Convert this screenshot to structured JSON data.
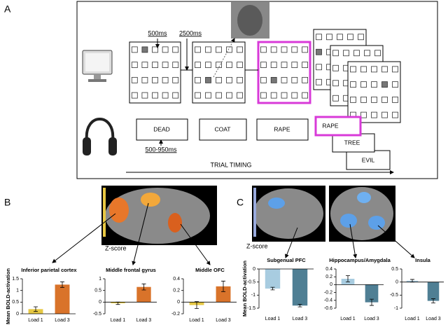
{
  "figure": {
    "panel_a": {
      "label": "A",
      "timing_labels": [
        "500ms",
        "2500ms",
        "500-950ms"
      ],
      "words": [
        "DEAD",
        "COAT",
        "RAPE",
        "RAPE",
        "TREE",
        "EVIL"
      ],
      "axis_label": "TRIAL TIMING"
    },
    "panel_b": {
      "label": "B",
      "scale_label": "Z-score"
    },
    "panel_c": {
      "label": "C",
      "scale_label": "Z-score"
    }
  },
  "chart_data": [
    {
      "type": "bar",
      "title": "Inferior parietal cortex",
      "ylabel": "Mean BOLD-activation",
      "categories": [
        "Load 1",
        "Load 3"
      ],
      "values": [
        0.2,
        1.25
      ],
      "errors": [
        0.1,
        0.12
      ],
      "colors": [
        "#e6c843",
        "#d9732a"
      ],
      "ylim": [
        0,
        1.5
      ],
      "yticks": [
        0,
        0.5,
        1,
        1.5
      ]
    },
    {
      "type": "bar",
      "title": "Middle frontal gyrus",
      "categories": [
        "Load 1",
        "Load 3"
      ],
      "values": [
        -0.05,
        0.65
      ],
      "errors": [
        0.05,
        0.13
      ],
      "colors": [
        "#e6c843",
        "#d9732a"
      ],
      "ylim": [
        -0.5,
        1
      ],
      "yticks": [
        -0.5,
        0,
        0.5,
        1
      ]
    },
    {
      "type": "bar",
      "title": "Middle OFC",
      "categories": [
        "Load 1",
        "Load 3"
      ],
      "values": [
        -0.05,
        0.27
      ],
      "errors": [
        0.06,
        0.09
      ],
      "colors": [
        "#e6c843",
        "#d9732a"
      ],
      "ylim": [
        -0.2,
        0.4
      ],
      "yticks": [
        -0.2,
        0,
        0.2,
        0.4
      ]
    },
    {
      "type": "bar",
      "title": "Subgenual PFC",
      "ylabel": "Mean BOLD-activation",
      "categories": [
        "Load 1",
        "Load 3"
      ],
      "values": [
        -0.75,
        -1.4
      ],
      "errors": [
        0.05,
        0.05
      ],
      "colors": [
        "#a8cce0",
        "#4f7f94"
      ],
      "ylim": [
        -1.5,
        0
      ],
      "yticks": [
        0,
        -0.5,
        -1,
        -1.5
      ]
    },
    {
      "type": "bar",
      "title": "Hippocampus/Amygdala",
      "categories": [
        "Load 1",
        "Load 3"
      ],
      "values": [
        0.15,
        -0.45
      ],
      "errors": [
        0.08,
        0.08
      ],
      "colors": [
        "#a8cce0",
        "#4f7f94"
      ],
      "ylim": [
        -0.6,
        0.4
      ],
      "yticks": [
        0.4,
        0.2,
        0,
        -0.2,
        -0.4,
        -0.6
      ]
    },
    {
      "type": "bar",
      "title": "Insula",
      "categories": [
        "Load 1",
        "Load 3"
      ],
      "values": [
        0.05,
        -0.72
      ],
      "errors": [
        0.05,
        0.08
      ],
      "colors": [
        "#a8cce0",
        "#4f7f94"
      ],
      "ylim": [
        -1,
        0.5
      ],
      "yticks": [
        0.5,
        0,
        -0.5,
        -1
      ]
    }
  ]
}
